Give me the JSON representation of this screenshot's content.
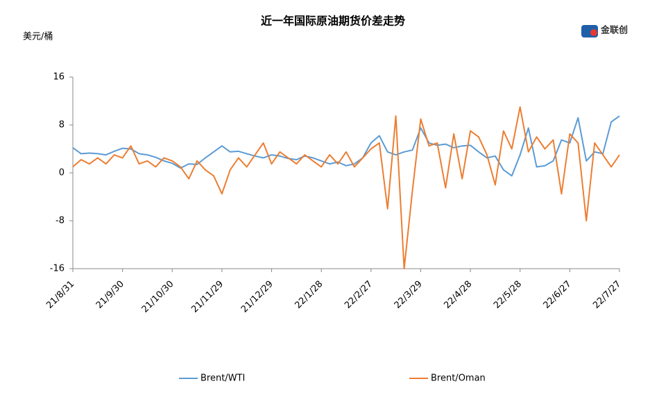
{
  "chart_data": {
    "type": "line",
    "title": "近一年国际原油期货价差走势",
    "y_axis_label": "美元/桶",
    "logo": "金联创",
    "categories": [
      "21/8/31",
      null,
      null,
      null,
      null,
      null,
      "21/9/30",
      null,
      null,
      null,
      null,
      null,
      "21/10/30",
      null,
      null,
      null,
      null,
      null,
      "21/11/29",
      null,
      null,
      null,
      null,
      null,
      "21/12/29",
      null,
      null,
      null,
      null,
      null,
      "22/1/28",
      null,
      null,
      null,
      null,
      null,
      "22/2/27",
      null,
      null,
      null,
      null,
      null,
      "22/3/29",
      null,
      null,
      null,
      null,
      null,
      "22/4/28",
      null,
      null,
      null,
      null,
      null,
      "22/5/28",
      null,
      null,
      null,
      null,
      null,
      "22/6/27",
      null,
      null,
      null,
      null,
      null,
      "22/7/27"
    ],
    "series": [
      {
        "name": "Brent/WTI",
        "color": "#5b9bd5",
        "values": [
          4.2,
          3.2,
          3.3,
          3.2,
          3.0,
          3.6,
          4.1,
          4.0,
          3.2,
          3.0,
          2.6,
          2.0,
          1.6,
          0.8,
          1.5,
          1.4,
          2.5,
          3.5,
          4.5,
          3.5,
          3.6,
          3.2,
          2.8,
          2.5,
          3.0,
          2.8,
          2.4,
          2.2,
          2.8,
          2.5,
          2.0,
          1.5,
          1.8,
          1.2,
          1.5,
          2.5,
          5.0,
          6.2,
          3.5,
          3.0,
          3.5,
          3.8,
          7.5,
          5.0,
          4.6,
          4.8,
          4.2,
          4.5,
          4.6,
          3.5,
          2.5,
          2.8,
          0.5,
          -0.5,
          3.0,
          7.5,
          1.0,
          1.2,
          2.0,
          5.5,
          5.0,
          9.2,
          2.0,
          3.5,
          3.2,
          8.5,
          9.5
        ]
      },
      {
        "name": "Brent/Oman",
        "color": "#ed7d31",
        "values": [
          1.0,
          2.2,
          1.5,
          2.5,
          1.5,
          3.0,
          2.5,
          4.5,
          1.5,
          2.0,
          1.0,
          2.5,
          2.0,
          1.0,
          -1.0,
          2.0,
          0.5,
          -0.5,
          -3.5,
          0.5,
          2.5,
          1.0,
          3.0,
          5.0,
          1.5,
          3.5,
          2.5,
          1.5,
          3.0,
          2.0,
          1.0,
          3.0,
          1.5,
          3.5,
          1.0,
          2.5,
          4.0,
          5.0,
          -6.0,
          9.5,
          -16,
          -3.0,
          9.0,
          4.5,
          5.0,
          -2.5,
          6.5,
          -1.0,
          7.0,
          6.0,
          3.0,
          -2.0,
          7.0,
          4.0,
          11.0,
          3.5,
          6.0,
          4.0,
          5.5,
          -3.5,
          6.5,
          5.0,
          -8.0,
          5.0,
          3.0,
          1.0,
          3.0
        ]
      }
    ],
    "ylim": [
      -16,
      16
    ],
    "yticks": [
      -16,
      -8,
      0,
      8,
      16
    ],
    "grid": false,
    "legend": "bottom"
  }
}
